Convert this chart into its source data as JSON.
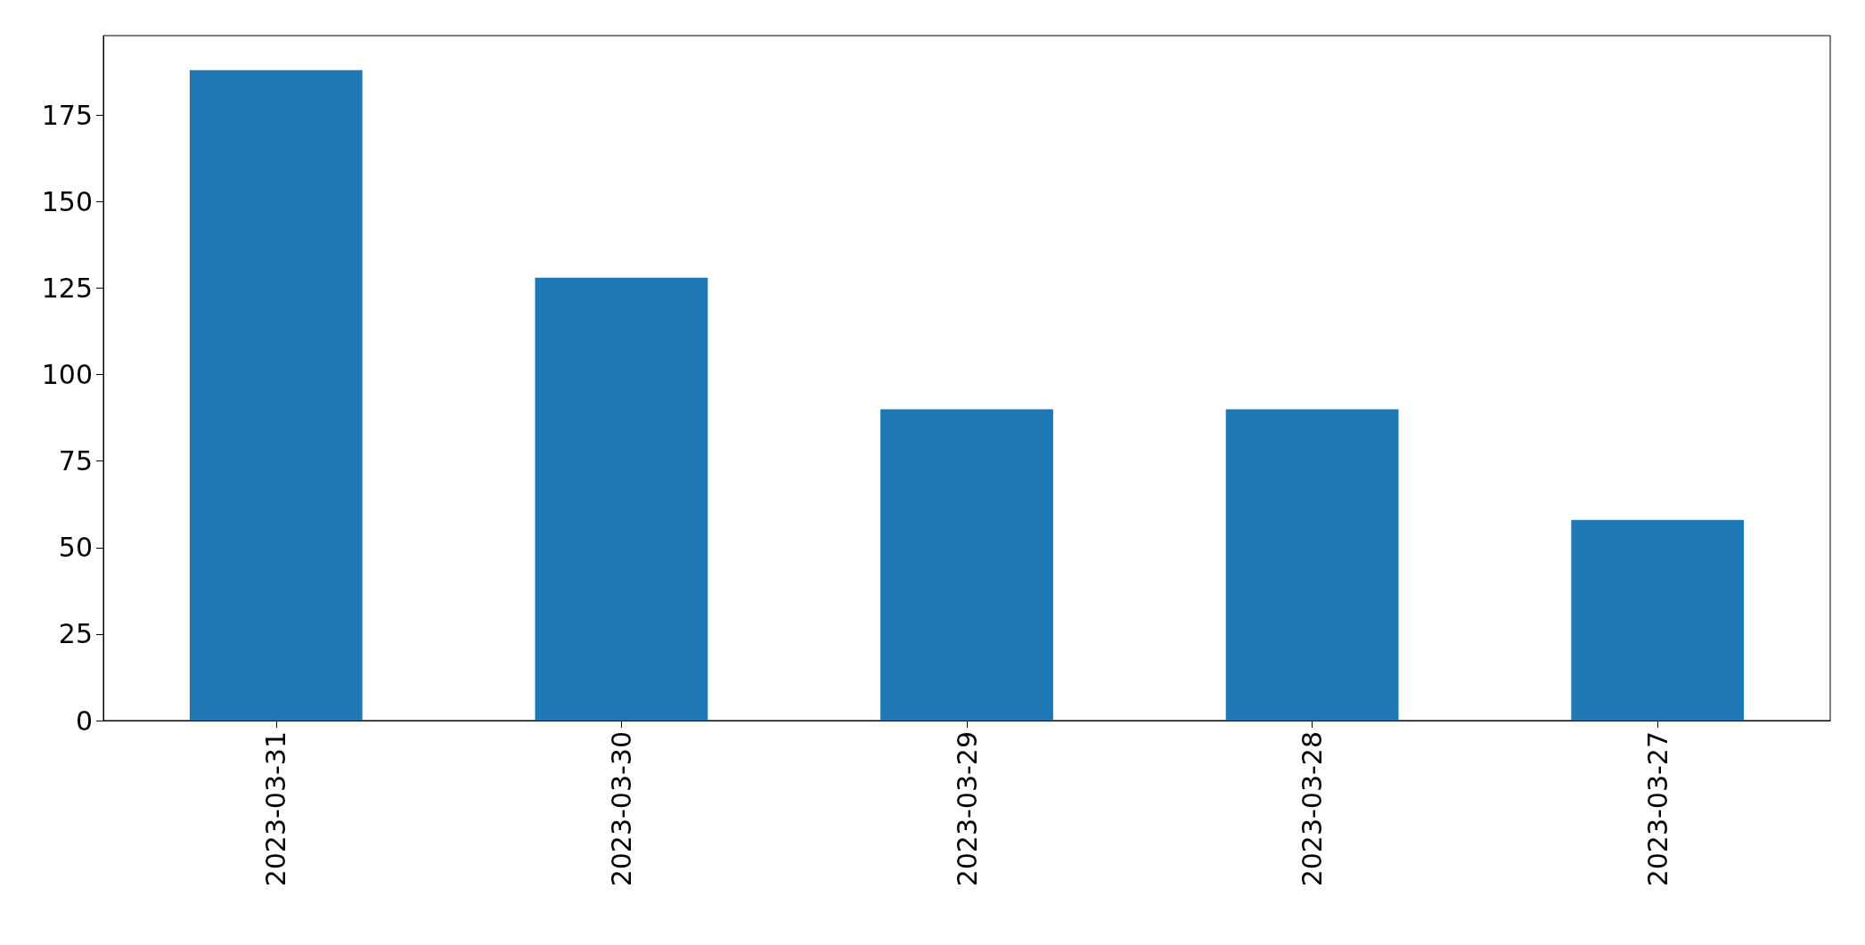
{
  "chart_data": {
    "type": "bar",
    "categories": [
      "2023-03-31",
      "2023-03-30",
      "2023-03-29",
      "2023-03-28",
      "2023-03-27"
    ],
    "values": [
      188,
      128,
      90,
      90,
      58
    ],
    "color": "#1f77b4",
    "ylim": [
      0,
      198
    ],
    "yticks": [
      0,
      25,
      50,
      75,
      100,
      125,
      150,
      175
    ],
    "grid": false
  }
}
